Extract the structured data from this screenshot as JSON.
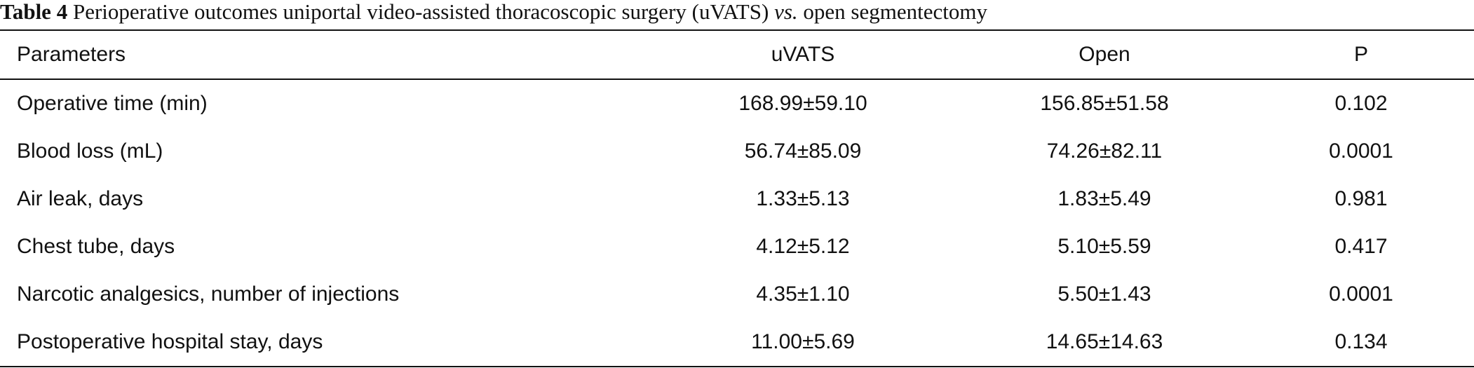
{
  "caption": {
    "label": "Table 4",
    "text_before": "Perioperative outcomes uniportal video-assisted thoracoscopic surgery (uVATS)",
    "italic": "vs.",
    "text_after": "open segmentectomy"
  },
  "table": {
    "headers": [
      "Parameters",
      "uVATS",
      "Open",
      "P"
    ],
    "rows": [
      {
        "parameter": "Operative time (min)",
        "uvats": "168.99±59.10",
        "open": "156.85±51.58",
        "p": "0.102"
      },
      {
        "parameter": "Blood loss (mL)",
        "uvats": "56.74±85.09",
        "open": "74.26±82.11",
        "p": "0.0001"
      },
      {
        "parameter": "Air leak, days",
        "uvats": "1.33±5.13",
        "open": "1.83±5.49",
        "p": "0.981"
      },
      {
        "parameter": "Chest tube, days",
        "uvats": "4.12±5.12",
        "open": "5.10±5.59",
        "p": "0.417"
      },
      {
        "parameter": "Narcotic analgesics, number of injections",
        "uvats": "4.35±1.10",
        "open": "5.50±1.43",
        "p": "0.0001"
      },
      {
        "parameter": "Postoperative hospital stay, days",
        "uvats": "11.00±5.69",
        "open": "14.65±14.63",
        "p": "0.134"
      }
    ]
  }
}
